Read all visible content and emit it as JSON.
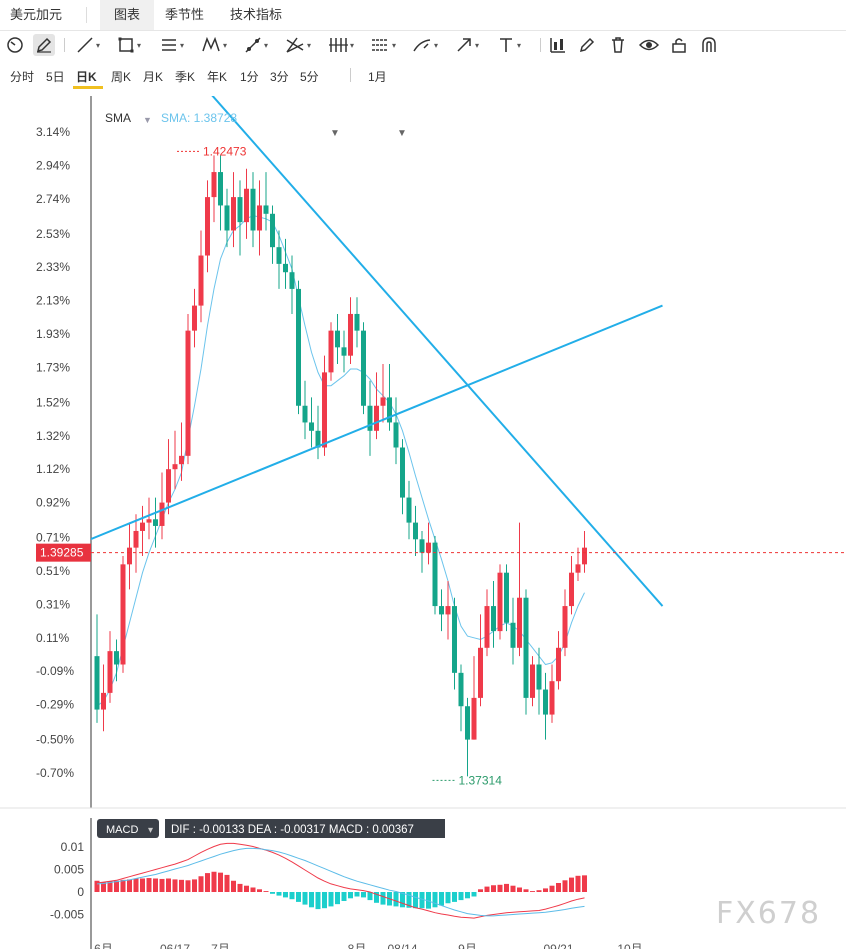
{
  "tabs": [
    {
      "label": "美元加元",
      "active": false
    },
    {
      "label": "图表",
      "active": true
    },
    {
      "label": "季节性",
      "active": false
    },
    {
      "label": "技术指标",
      "active": false
    }
  ],
  "periods": [
    "分时",
    "5日",
    "日K",
    "周K",
    "月K",
    "季K",
    "年K",
    "1分",
    "3分",
    "5分"
  ],
  "active_period": "日K",
  "range_selector": "1月",
  "watermark": "FX678",
  "colors": {
    "up": "#ef3a4a",
    "down": "#14a58a",
    "sma": "#6cc4ec",
    "trend": "#22aee8",
    "dif": "#ef3a4a",
    "dea": "#5cbce8"
  },
  "chart_data": [
    {
      "type": "candlestick",
      "indicator": {
        "name": "SMA",
        "label": "SMA: 1.38728"
      },
      "y_ticks": [
        "3.14%",
        "2.94%",
        "2.74%",
        "2.53%",
        "2.33%",
        "2.13%",
        "1.93%",
        "1.73%",
        "1.52%",
        "1.32%",
        "1.12%",
        "0.92%",
        "0.71%",
        "0.51%",
        "0.31%",
        "0.11%",
        "-0.09%",
        "-0.29%",
        "-0.50%",
        "-0.70%"
      ],
      "ylim": [
        -0.9,
        3.3
      ],
      "x_ticks": [
        {
          "label": "6月",
          "index": 1
        },
        {
          "label": "06/17",
          "index": 12
        },
        {
          "label": "7月",
          "index": 19
        },
        {
          "label": "8月",
          "index": 40
        },
        {
          "label": "08/14",
          "index": 47
        },
        {
          "label": "9月",
          "index": 57
        },
        {
          "label": "09/21",
          "index": 71
        },
        {
          "label": "10月",
          "index": 82
        }
      ],
      "current_price": {
        "label": "1.39285",
        "value": 0.62
      },
      "max_marker": {
        "label": "1.42473",
        "index": 16,
        "value": 3.0
      },
      "min_marker": {
        "label": "1.37314",
        "index": 51,
        "value": -0.72
      },
      "candles": [
        [
          0.0,
          -0.32,
          0.25,
          -0.4
        ],
        [
          -0.32,
          -0.22,
          -0.05,
          -0.45
        ],
        [
          -0.22,
          0.03,
          0.15,
          -0.28
        ],
        [
          0.03,
          -0.05,
          0.1,
          -0.15
        ],
        [
          -0.05,
          0.55,
          0.6,
          -0.1
        ],
        [
          0.55,
          0.65,
          0.8,
          0.4
        ],
        [
          0.65,
          0.75,
          0.85,
          0.5
        ],
        [
          0.75,
          0.8,
          0.9,
          0.6
        ],
        [
          0.8,
          0.82,
          0.95,
          0.7
        ],
        [
          0.82,
          0.78,
          0.95,
          0.65
        ],
        [
          0.78,
          0.92,
          1.1,
          0.7
        ],
        [
          0.92,
          1.12,
          1.3,
          0.85
        ],
        [
          1.12,
          1.15,
          1.35,
          1.0
        ],
        [
          1.15,
          1.2,
          1.4,
          1.05
        ],
        [
          1.2,
          1.95,
          2.05,
          1.15
        ],
        [
          1.95,
          2.1,
          2.2,
          1.85
        ],
        [
          2.1,
          2.4,
          2.55,
          2.0
        ],
        [
          2.4,
          2.75,
          2.85,
          2.3
        ],
        [
          2.75,
          2.9,
          3.0,
          2.6
        ],
        [
          2.9,
          2.7,
          3.0,
          2.55
        ],
        [
          2.7,
          2.55,
          2.8,
          2.45
        ],
        [
          2.55,
          2.75,
          2.9,
          2.45
        ],
        [
          2.75,
          2.6,
          2.85,
          2.4
        ],
        [
          2.6,
          2.8,
          2.92,
          2.5
        ],
        [
          2.8,
          2.55,
          2.9,
          2.45
        ],
        [
          2.55,
          2.7,
          2.85,
          2.4
        ],
        [
          2.7,
          2.65,
          2.9,
          2.55
        ],
        [
          2.65,
          2.45,
          2.7,
          2.35
        ],
        [
          2.45,
          2.35,
          2.55,
          2.2
        ],
        [
          2.35,
          2.3,
          2.5,
          2.2
        ],
        [
          2.3,
          2.2,
          2.4,
          2.05
        ],
        [
          2.2,
          1.5,
          2.25,
          1.45
        ],
        [
          1.5,
          1.4,
          1.65,
          1.3
        ],
        [
          1.4,
          1.35,
          1.55,
          1.25
        ],
        [
          1.35,
          1.25,
          1.5,
          1.18
        ],
        [
          1.25,
          1.7,
          1.8,
          1.2
        ],
        [
          1.7,
          1.95,
          2.0,
          1.65
        ],
        [
          1.95,
          1.85,
          2.05,
          1.75
        ],
        [
          1.85,
          1.8,
          1.95,
          1.7
        ],
        [
          1.8,
          2.05,
          2.15,
          1.75
        ],
        [
          2.05,
          1.95,
          2.15,
          1.85
        ],
        [
          1.95,
          1.5,
          2.0,
          1.45
        ],
        [
          1.5,
          1.35,
          1.65,
          1.2
        ],
        [
          1.35,
          1.5,
          1.7,
          1.3
        ],
        [
          1.5,
          1.55,
          1.75,
          1.4
        ],
        [
          1.55,
          1.4,
          1.75,
          1.35
        ],
        [
          1.4,
          1.25,
          1.55,
          1.15
        ],
        [
          1.25,
          0.95,
          1.3,
          0.85
        ],
        [
          0.95,
          0.8,
          1.05,
          0.7
        ],
        [
          0.8,
          0.7,
          0.9,
          0.6
        ],
        [
          0.7,
          0.62,
          0.75,
          0.5
        ],
        [
          0.62,
          0.68,
          0.8,
          0.55
        ],
        [
          0.68,
          0.3,
          0.72,
          0.25
        ],
        [
          0.3,
          0.25,
          0.4,
          0.15
        ],
        [
          0.25,
          0.3,
          0.45,
          0.1
        ],
        [
          0.3,
          -0.1,
          0.35,
          -0.2
        ],
        [
          -0.1,
          -0.3,
          -0.05,
          -0.45
        ],
        [
          -0.3,
          -0.5,
          -0.25,
          -0.72
        ],
        [
          -0.5,
          -0.25,
          0.0,
          -0.5
        ],
        [
          -0.25,
          0.05,
          0.25,
          -0.3
        ],
        [
          0.05,
          0.3,
          0.4,
          0.0
        ],
        [
          0.3,
          0.15,
          0.45,
          0.05
        ],
        [
          0.15,
          0.5,
          0.55,
          0.1
        ],
        [
          0.5,
          0.2,
          0.55,
          0.15
        ],
        [
          0.2,
          0.05,
          0.35,
          -0.05
        ],
        [
          0.05,
          0.35,
          0.8,
          0.0
        ],
        [
          0.35,
          -0.25,
          0.4,
          -0.35
        ],
        [
          -0.25,
          -0.05,
          0.0,
          -0.3
        ],
        [
          -0.05,
          -0.2,
          0.05,
          -0.35
        ],
        [
          -0.2,
          -0.35,
          -0.1,
          -0.5
        ],
        [
          -0.35,
          -0.15,
          -0.05,
          -0.4
        ],
        [
          -0.15,
          0.05,
          0.15,
          -0.2
        ],
        [
          0.05,
          0.3,
          0.4,
          0.0
        ],
        [
          0.3,
          0.5,
          0.6,
          0.25
        ],
        [
          0.5,
          0.55,
          0.65,
          0.45
        ],
        [
          0.55,
          0.65,
          0.75,
          0.5
        ]
      ],
      "sma": [
        -0.3,
        -0.27,
        -0.2,
        -0.1,
        0.05,
        0.2,
        0.35,
        0.5,
        0.62,
        0.72,
        0.82,
        0.92,
        1.0,
        1.1,
        1.3,
        1.5,
        1.72,
        1.98,
        2.2,
        2.38,
        2.48,
        2.55,
        2.58,
        2.62,
        2.64,
        2.63,
        2.62,
        2.6,
        2.52,
        2.42,
        2.32,
        2.15,
        1.98,
        1.82,
        1.7,
        1.62,
        1.62,
        1.65,
        1.68,
        1.72,
        1.72,
        1.7,
        1.66,
        1.6,
        1.56,
        1.52,
        1.45,
        1.35,
        1.22,
        1.08,
        0.95,
        0.82,
        0.7,
        0.58,
        0.45,
        0.3,
        0.18,
        0.12,
        0.11,
        0.1,
        0.12,
        0.15,
        0.18,
        0.2,
        0.18,
        0.15,
        0.1,
        0.05,
        0.0,
        -0.05,
        -0.04,
        0.0,
        0.08,
        0.2,
        0.3,
        0.38
      ],
      "trendlines": [
        {
          "from": {
            "index": -1,
            "value": 0.7
          },
          "to": {
            "index": 87,
            "value": 2.1
          }
        },
        {
          "from": {
            "index": 10,
            "value": 3.7
          },
          "to": {
            "index": 87,
            "value": 0.3
          }
        }
      ]
    },
    {
      "type": "macd",
      "selector_label": "MACD",
      "legend": "DIF : -0.00133  DEA : -0.00317  MACD : 0.00367",
      "y_ticks": [
        "0.01",
        "0.005",
        "0",
        "-0.005"
      ],
      "ylim": [
        -0.008,
        0.012
      ],
      "histogram": [
        0.0025,
        0.0022,
        0.0024,
        0.0025,
        0.0027,
        0.0028,
        0.003,
        0.003,
        0.0031,
        0.003,
        0.0029,
        0.003,
        0.0028,
        0.0027,
        0.0026,
        0.0028,
        0.0035,
        0.0042,
        0.0045,
        0.0043,
        0.0038,
        0.0025,
        0.0018,
        0.0014,
        0.001,
        0.0006,
        0.0002,
        -0.0004,
        -0.0008,
        -0.0012,
        -0.0016,
        -0.0022,
        -0.0028,
        -0.0034,
        -0.0038,
        -0.0036,
        -0.0032,
        -0.0027,
        -0.002,
        -0.0014,
        -0.001,
        -0.0012,
        -0.0018,
        -0.0024,
        -0.0028,
        -0.003,
        -0.0032,
        -0.0034,
        -0.0035,
        -0.0036,
        -0.0036,
        -0.0037,
        -0.0034,
        -0.003,
        -0.0025,
        -0.0022,
        -0.0018,
        -0.0014,
        -0.001,
        0.0006,
        0.0012,
        0.0015,
        0.0016,
        0.0018,
        0.0014,
        0.001,
        0.0006,
        0.0002,
        0.0004,
        0.0008,
        0.0014,
        0.002,
        0.0026,
        0.0032,
        0.0036,
        0.0037
      ],
      "dif": [
        0.002,
        0.0022,
        0.0024,
        0.0026,
        0.003,
        0.0034,
        0.0038,
        0.0042,
        0.0046,
        0.005,
        0.0054,
        0.0058,
        0.0062,
        0.0067,
        0.0072,
        0.008,
        0.0088,
        0.0095,
        0.0101,
        0.0106,
        0.0108,
        0.0108,
        0.0106,
        0.0104,
        0.0101,
        0.0097,
        0.0093,
        0.0088,
        0.0082,
        0.0075,
        0.0067,
        0.0058,
        0.0049,
        0.004,
        0.0031,
        0.0024,
        0.0018,
        0.0014,
        0.001,
        0.0007,
        0.0005,
        0.0003,
        0.0,
        -0.0005,
        -0.001,
        -0.0015,
        -0.002,
        -0.0025,
        -0.003,
        -0.0035,
        -0.0038,
        -0.0042,
        -0.0046,
        -0.0049,
        -0.0051,
        -0.0054,
        -0.0056,
        -0.0057,
        -0.0058,
        -0.0055,
        -0.0052,
        -0.005,
        -0.0048,
        -0.0046,
        -0.0045,
        -0.0044,
        -0.0043,
        -0.0042,
        -0.0041,
        -0.0038,
        -0.0034,
        -0.003,
        -0.0025,
        -0.002,
        -0.0016,
        -0.0013
      ],
      "dea": [
        0.0018,
        0.0019,
        0.0021,
        0.0023,
        0.0025,
        0.0027,
        0.003,
        0.0033,
        0.0036,
        0.0039,
        0.0043,
        0.0047,
        0.0051,
        0.0055,
        0.0059,
        0.0064,
        0.0069,
        0.0074,
        0.0079,
        0.0084,
        0.0088,
        0.0092,
        0.0095,
        0.0097,
        0.0097,
        0.0096,
        0.0094,
        0.0092,
        0.0089,
        0.0085,
        0.008,
        0.0075,
        0.007,
        0.0064,
        0.0058,
        0.0052,
        0.0046,
        0.004,
        0.0034,
        0.0029,
        0.0024,
        0.002,
        0.0016,
        0.0012,
        0.0008,
        0.0004,
        0.0001,
        -0.0003,
        -0.0007,
        -0.0012,
        -0.0016,
        -0.002,
        -0.0025,
        -0.003,
        -0.0035,
        -0.004,
        -0.0044,
        -0.0048,
        -0.005,
        -0.0052,
        -0.0053,
        -0.0053,
        -0.0052,
        -0.0051,
        -0.005,
        -0.0049,
        -0.0048,
        -0.0047,
        -0.0046,
        -0.0045,
        -0.0043,
        -0.0041,
        -0.0039,
        -0.0036,
        -0.0034,
        -0.0032
      ]
    }
  ]
}
